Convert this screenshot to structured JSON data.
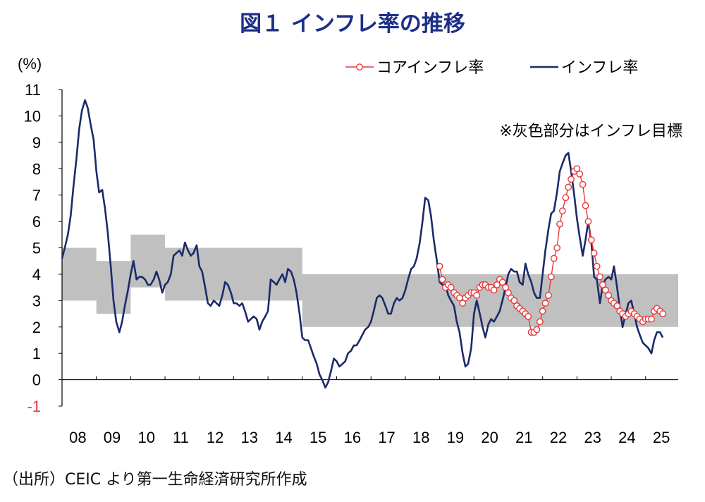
{
  "title": "図１ インフレ率の推移",
  "source": "（出所）CEIC より第一生命経済研究所作成",
  "chart_data": {
    "type": "line",
    "unit_label": "(%)",
    "note": "※灰色部分はインフレ目標",
    "ylim": [
      -1,
      11
    ],
    "y_ticks": [
      "-1",
      "0",
      "1",
      "2",
      "3",
      "4",
      "5",
      "6",
      "7",
      "8",
      "9",
      "10",
      "11"
    ],
    "negative_tick_color": "#e8383d",
    "x_ticks": [
      "08",
      "09",
      "10",
      "11",
      "12",
      "13",
      "14",
      "15",
      "16",
      "17",
      "18",
      "19",
      "20",
      "21",
      "22",
      "23",
      "24",
      "25"
    ],
    "x_range": [
      2008.0,
      2025.95
    ],
    "legend": [
      {
        "name": "コアインフレ率",
        "color": "#e8383d",
        "marker": "circle-open"
      },
      {
        "name": "インフレ率",
        "color": "#1b2a6b",
        "marker": "none"
      }
    ],
    "target_band_color": "#c0c0c0",
    "target_band": [
      {
        "from": 2008.0,
        "to": 2009.0,
        "lo": 3.0,
        "hi": 5.0
      },
      {
        "from": 2009.0,
        "to": 2010.0,
        "lo": 2.5,
        "hi": 4.5
      },
      {
        "from": 2010.0,
        "to": 2011.0,
        "lo": 3.5,
        "hi": 5.5
      },
      {
        "from": 2011.0,
        "to": 2015.0,
        "lo": 3.0,
        "hi": 5.0
      },
      {
        "from": 2015.0,
        "to": 2025.95,
        "lo": 2.0,
        "hi": 4.0
      }
    ],
    "series": [
      {
        "name": "インフレ率",
        "color": "#1b2a6b",
        "points": [
          [
            2008.0,
            4.6
          ],
          [
            2008.08,
            5.0
          ],
          [
            2008.17,
            5.5
          ],
          [
            2008.25,
            6.2
          ],
          [
            2008.33,
            7.3
          ],
          [
            2008.42,
            8.4
          ],
          [
            2008.5,
            9.5
          ],
          [
            2008.58,
            10.2
          ],
          [
            2008.67,
            10.6
          ],
          [
            2008.75,
            10.3
          ],
          [
            2008.83,
            9.7
          ],
          [
            2008.92,
            9.1
          ],
          [
            2009.0,
            7.9
          ],
          [
            2009.08,
            7.1
          ],
          [
            2009.17,
            7.2
          ],
          [
            2009.25,
            6.5
          ],
          [
            2009.33,
            5.6
          ],
          [
            2009.42,
            4.3
          ],
          [
            2009.5,
            3.0
          ],
          [
            2009.58,
            2.2
          ],
          [
            2009.67,
            1.8
          ],
          [
            2009.75,
            2.2
          ],
          [
            2009.83,
            2.8
          ],
          [
            2009.92,
            3.4
          ],
          [
            2010.0,
            4.0
          ],
          [
            2010.08,
            4.5
          ],
          [
            2010.17,
            3.8
          ],
          [
            2010.25,
            3.9
          ],
          [
            2010.33,
            3.9
          ],
          [
            2010.42,
            3.8
          ],
          [
            2010.5,
            3.6
          ],
          [
            2010.58,
            3.6
          ],
          [
            2010.67,
            3.8
          ],
          [
            2010.75,
            4.1
          ],
          [
            2010.83,
            3.8
          ],
          [
            2010.92,
            3.3
          ],
          [
            2011.0,
            3.6
          ],
          [
            2011.08,
            3.7
          ],
          [
            2011.17,
            4.0
          ],
          [
            2011.25,
            4.7
          ],
          [
            2011.33,
            4.8
          ],
          [
            2011.42,
            4.9
          ],
          [
            2011.5,
            4.7
          ],
          [
            2011.58,
            5.2
          ],
          [
            2011.67,
            4.9
          ],
          [
            2011.75,
            4.7
          ],
          [
            2011.83,
            4.8
          ],
          [
            2011.92,
            5.1
          ],
          [
            2012.0,
            4.3
          ],
          [
            2012.08,
            4.1
          ],
          [
            2012.17,
            3.5
          ],
          [
            2012.25,
            2.9
          ],
          [
            2012.33,
            2.8
          ],
          [
            2012.42,
            3.0
          ],
          [
            2012.5,
            2.9
          ],
          [
            2012.58,
            2.8
          ],
          [
            2012.67,
            3.2
          ],
          [
            2012.75,
            3.7
          ],
          [
            2012.83,
            3.6
          ],
          [
            2012.92,
            3.3
          ],
          [
            2013.0,
            2.9
          ],
          [
            2013.08,
            2.9
          ],
          [
            2013.17,
            2.8
          ],
          [
            2013.25,
            2.9
          ],
          [
            2013.33,
            2.6
          ],
          [
            2013.42,
            2.2
          ],
          [
            2013.5,
            2.3
          ],
          [
            2013.58,
            2.4
          ],
          [
            2013.67,
            2.3
          ],
          [
            2013.75,
            1.9
          ],
          [
            2013.83,
            2.2
          ],
          [
            2013.92,
            2.4
          ],
          [
            2014.0,
            2.6
          ],
          [
            2014.08,
            3.8
          ],
          [
            2014.17,
            3.7
          ],
          [
            2014.25,
            3.6
          ],
          [
            2014.33,
            3.8
          ],
          [
            2014.42,
            4.0
          ],
          [
            2014.5,
            3.7
          ],
          [
            2014.58,
            4.2
          ],
          [
            2014.67,
            4.1
          ],
          [
            2014.75,
            3.8
          ],
          [
            2014.83,
            3.3
          ],
          [
            2014.92,
            2.5
          ],
          [
            2015.0,
            1.6
          ],
          [
            2015.08,
            1.5
          ],
          [
            2015.17,
            1.5
          ],
          [
            2015.25,
            1.2
          ],
          [
            2015.33,
            0.9
          ],
          [
            2015.42,
            0.6
          ],
          [
            2015.5,
            0.2
          ],
          [
            2015.58,
            0.0
          ],
          [
            2015.67,
            -0.3
          ],
          [
            2015.75,
            -0.1
          ],
          [
            2015.83,
            0.3
          ],
          [
            2015.92,
            0.8
          ],
          [
            2016.0,
            0.7
          ],
          [
            2016.08,
            0.5
          ],
          [
            2016.17,
            0.6
          ],
          [
            2016.25,
            0.7
          ],
          [
            2016.33,
            1.0
          ],
          [
            2016.42,
            1.1
          ],
          [
            2016.5,
            1.3
          ],
          [
            2016.58,
            1.3
          ],
          [
            2016.67,
            1.5
          ],
          [
            2016.75,
            1.7
          ],
          [
            2016.83,
            1.9
          ],
          [
            2016.92,
            2.0
          ],
          [
            2017.0,
            2.2
          ],
          [
            2017.08,
            2.6
          ],
          [
            2017.17,
            3.1
          ],
          [
            2017.25,
            3.2
          ],
          [
            2017.33,
            3.1
          ],
          [
            2017.42,
            2.8
          ],
          [
            2017.5,
            2.5
          ],
          [
            2017.58,
            2.5
          ],
          [
            2017.67,
            2.9
          ],
          [
            2017.75,
            3.1
          ],
          [
            2017.83,
            3.0
          ],
          [
            2017.92,
            3.1
          ],
          [
            2018.0,
            3.4
          ],
          [
            2018.08,
            3.8
          ],
          [
            2018.17,
            4.2
          ],
          [
            2018.25,
            4.3
          ],
          [
            2018.33,
            4.6
          ],
          [
            2018.42,
            5.2
          ],
          [
            2018.5,
            6.0
          ],
          [
            2018.58,
            6.9
          ],
          [
            2018.67,
            6.8
          ],
          [
            2018.75,
            6.2
          ],
          [
            2018.83,
            5.3
          ],
          [
            2018.92,
            4.5
          ],
          [
            2019.0,
            3.7
          ],
          [
            2019.08,
            3.6
          ],
          [
            2019.17,
            3.6
          ],
          [
            2019.25,
            3.2
          ],
          [
            2019.33,
            3.0
          ],
          [
            2019.42,
            2.8
          ],
          [
            2019.5,
            2.2
          ],
          [
            2019.58,
            1.8
          ],
          [
            2019.67,
            1.0
          ],
          [
            2019.75,
            0.5
          ],
          [
            2019.83,
            0.6
          ],
          [
            2019.92,
            1.2
          ],
          [
            2020.0,
            2.5
          ],
          [
            2020.08,
            3.0
          ],
          [
            2020.17,
            2.5
          ],
          [
            2020.25,
            2.0
          ],
          [
            2020.33,
            1.6
          ],
          [
            2020.42,
            2.1
          ],
          [
            2020.5,
            2.3
          ],
          [
            2020.58,
            2.2
          ],
          [
            2020.67,
            2.4
          ],
          [
            2020.75,
            2.6
          ],
          [
            2020.83,
            3.0
          ],
          [
            2020.92,
            3.5
          ],
          [
            2021.0,
            4.0
          ],
          [
            2021.08,
            4.2
          ],
          [
            2021.17,
            4.1
          ],
          [
            2021.25,
            4.1
          ],
          [
            2021.33,
            3.7
          ],
          [
            2021.42,
            3.6
          ],
          [
            2021.5,
            4.4
          ],
          [
            2021.58,
            4.0
          ],
          [
            2021.67,
            3.7
          ],
          [
            2021.75,
            3.3
          ],
          [
            2021.83,
            3.1
          ],
          [
            2021.92,
            3.1
          ],
          [
            2022.0,
            4.0
          ],
          [
            2022.08,
            4.9
          ],
          [
            2022.17,
            5.7
          ],
          [
            2022.25,
            6.3
          ],
          [
            2022.33,
            6.4
          ],
          [
            2022.42,
            7.1
          ],
          [
            2022.5,
            7.9
          ],
          [
            2022.58,
            8.2
          ],
          [
            2022.67,
            8.5
          ],
          [
            2022.75,
            8.6
          ],
          [
            2022.83,
            7.9
          ],
          [
            2022.92,
            7.0
          ],
          [
            2023.0,
            6.1
          ],
          [
            2023.08,
            5.4
          ],
          [
            2023.17,
            4.7
          ],
          [
            2023.25,
            5.3
          ],
          [
            2023.33,
            6.0
          ],
          [
            2023.42,
            5.2
          ],
          [
            2023.5,
            3.9
          ],
          [
            2023.58,
            3.8
          ],
          [
            2023.67,
            2.9
          ],
          [
            2023.75,
            3.6
          ],
          [
            2023.83,
            3.8
          ],
          [
            2023.92,
            3.9
          ],
          [
            2024.0,
            3.8
          ],
          [
            2024.08,
            4.3
          ],
          [
            2024.17,
            3.5
          ],
          [
            2024.25,
            2.7
          ],
          [
            2024.33,
            2.0
          ],
          [
            2024.42,
            2.5
          ],
          [
            2024.5,
            2.9
          ],
          [
            2024.58,
            3.0
          ],
          [
            2024.67,
            2.5
          ],
          [
            2024.75,
            2.0
          ],
          [
            2024.83,
            1.7
          ],
          [
            2024.92,
            1.4
          ],
          [
            2025.0,
            1.3
          ],
          [
            2025.08,
            1.2
          ],
          [
            2025.17,
            1.0
          ],
          [
            2025.25,
            1.5
          ],
          [
            2025.33,
            1.8
          ],
          [
            2025.42,
            1.8
          ],
          [
            2025.5,
            1.6
          ]
        ]
      },
      {
        "name": "コアインフレ率",
        "color": "#e8383d",
        "points": [
          [
            2019.0,
            4.3
          ],
          [
            2019.08,
            3.8
          ],
          [
            2019.17,
            3.5
          ],
          [
            2019.25,
            3.6
          ],
          [
            2019.33,
            3.5
          ],
          [
            2019.42,
            3.3
          ],
          [
            2019.5,
            3.2
          ],
          [
            2019.58,
            3.1
          ],
          [
            2019.67,
            2.9
          ],
          [
            2019.75,
            3.1
          ],
          [
            2019.83,
            3.2
          ],
          [
            2019.92,
            3.3
          ],
          [
            2020.0,
            3.3
          ],
          [
            2020.08,
            3.2
          ],
          [
            2020.17,
            3.5
          ],
          [
            2020.25,
            3.6
          ],
          [
            2020.33,
            3.6
          ],
          [
            2020.42,
            3.5
          ],
          [
            2020.5,
            3.5
          ],
          [
            2020.58,
            3.4
          ],
          [
            2020.67,
            3.6
          ],
          [
            2020.75,
            3.8
          ],
          [
            2020.83,
            3.7
          ],
          [
            2020.92,
            3.5
          ],
          [
            2021.0,
            3.3
          ],
          [
            2021.08,
            3.1
          ],
          [
            2021.17,
            3.0
          ],
          [
            2021.25,
            2.8
          ],
          [
            2021.33,
            2.7
          ],
          [
            2021.42,
            2.6
          ],
          [
            2021.5,
            2.5
          ],
          [
            2021.58,
            2.4
          ],
          [
            2021.67,
            1.8
          ],
          [
            2021.75,
            1.8
          ],
          [
            2021.83,
            1.9
          ],
          [
            2021.92,
            2.2
          ],
          [
            2022.0,
            2.6
          ],
          [
            2022.08,
            2.9
          ],
          [
            2022.17,
            3.2
          ],
          [
            2022.25,
            3.9
          ],
          [
            2022.33,
            4.6
          ],
          [
            2022.42,
            5.0
          ],
          [
            2022.5,
            5.9
          ],
          [
            2022.58,
            6.4
          ],
          [
            2022.67,
            6.9
          ],
          [
            2022.75,
            7.3
          ],
          [
            2022.83,
            7.6
          ],
          [
            2022.92,
            7.9
          ],
          [
            2023.0,
            8.0
          ],
          [
            2023.08,
            7.8
          ],
          [
            2023.17,
            7.4
          ],
          [
            2023.25,
            6.6
          ],
          [
            2023.33,
            6.0
          ],
          [
            2023.42,
            5.3
          ],
          [
            2023.5,
            4.8
          ],
          [
            2023.58,
            4.3
          ],
          [
            2023.67,
            3.9
          ],
          [
            2023.75,
            3.6
          ],
          [
            2023.83,
            3.4
          ],
          [
            2023.92,
            3.2
          ],
          [
            2024.0,
            3.0
          ],
          [
            2024.08,
            2.9
          ],
          [
            2024.17,
            2.8
          ],
          [
            2024.25,
            2.6
          ],
          [
            2024.33,
            2.5
          ],
          [
            2024.42,
            2.4
          ],
          [
            2024.5,
            2.5
          ],
          [
            2024.58,
            2.6
          ],
          [
            2024.67,
            2.5
          ],
          [
            2024.75,
            2.4
          ],
          [
            2024.83,
            2.3
          ],
          [
            2024.92,
            2.2
          ],
          [
            2025.0,
            2.3
          ],
          [
            2025.08,
            2.3
          ],
          [
            2025.17,
            2.3
          ],
          [
            2025.25,
            2.6
          ],
          [
            2025.33,
            2.7
          ],
          [
            2025.42,
            2.6
          ],
          [
            2025.5,
            2.5
          ]
        ]
      }
    ]
  }
}
